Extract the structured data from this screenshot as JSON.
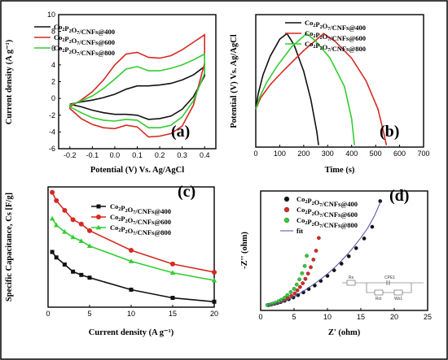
{
  "colors": {
    "c400": "#111111",
    "c600": "#d42a22",
    "c800": "#33cc33",
    "fit": "#4a4aa8"
  },
  "chart_data": [
    {
      "id": "a",
      "type": "line",
      "panel_label": "(a)",
      "xlabel": "Potential (V) Vs. Ag/AgCl",
      "ylabel": "Current density (A g⁻¹)",
      "xlim": [
        -0.25,
        0.45
      ],
      "ylim": [
        -6,
        10
      ],
      "xticks": [
        -0.2,
        -0.1,
        0.0,
        0.1,
        0.2,
        0.3,
        0.4
      ],
      "yticks": [
        -6,
        -4,
        -2,
        0,
        2,
        4,
        6,
        8,
        10
      ],
      "legend": [
        "Co₂P₂O₇/CNFs@400",
        "Co₂P₂O₇/CNFs@600",
        "Co₂P₂O₇/CNFs@800"
      ],
      "legend_position": "top-left",
      "series": [
        {
          "name": "Co₂P₂O₇/CNFs@400",
          "color_key": "c400",
          "x": [
            -0.2,
            -0.15,
            -0.1,
            -0.05,
            0,
            0.05,
            0.1,
            0.15,
            0.2,
            0.25,
            0.3,
            0.35,
            0.4,
            0.4,
            0.35,
            0.3,
            0.25,
            0.2,
            0.15,
            0.1,
            0.05,
            0,
            -0.05,
            -0.1,
            -0.15,
            -0.2
          ],
          "y": [
            -0.7,
            -0.4,
            -0.2,
            0.1,
            0.5,
            1.1,
            1.5,
            1.5,
            1.6,
            1.8,
            2.2,
            2.8,
            3.8,
            2.7,
            0.2,
            -1.3,
            -2.1,
            -2.4,
            -2.5,
            -2.0,
            -1.9,
            -1.9,
            -1.7,
            -1.4,
            -1.0,
            -0.7
          ]
        },
        {
          "name": "Co₂P₂O₇/CNFs@600",
          "color_key": "c600",
          "x": [
            -0.2,
            -0.15,
            -0.1,
            -0.05,
            0,
            0.05,
            0.1,
            0.15,
            0.2,
            0.25,
            0.3,
            0.35,
            0.4,
            0.4,
            0.35,
            0.3,
            0.25,
            0.2,
            0.15,
            0.1,
            0.05,
            0,
            -0.05,
            -0.1,
            -0.15,
            -0.2
          ],
          "y": [
            -1.0,
            -0.2,
            0.8,
            2.2,
            4.0,
            5.3,
            5.5,
            4.9,
            4.8,
            5.1,
            5.8,
            6.7,
            7.6,
            4.2,
            -0.8,
            -3.3,
            -4.2,
            -4.5,
            -4.6,
            -3.4,
            -3.2,
            -3.6,
            -3.5,
            -3.1,
            -2.4,
            -1.2
          ]
        },
        {
          "name": "Co₂P₂O₇/CNFs@800",
          "color_key": "c800",
          "x": [
            -0.2,
            -0.15,
            -0.1,
            -0.05,
            0,
            0.05,
            0.1,
            0.15,
            0.2,
            0.25,
            0.3,
            0.35,
            0.4,
            0.4,
            0.35,
            0.3,
            0.25,
            0.2,
            0.15,
            0.1,
            0.05,
            0,
            -0.05,
            -0.1,
            -0.15,
            -0.2
          ],
          "y": [
            -0.8,
            -0.3,
            0.3,
            1.2,
            2.3,
            3.5,
            3.8,
            3.3,
            3.3,
            3.6,
            4.0,
            4.6,
            5.3,
            3.0,
            -0.3,
            -2.2,
            -3.2,
            -3.5,
            -3.5,
            -2.6,
            -2.5,
            -2.7,
            -2.6,
            -2.3,
            -1.7,
            -1.0
          ]
        }
      ]
    },
    {
      "id": "b",
      "type": "line",
      "panel_label": "(b)",
      "xlabel": "Time (s)",
      "ylabel": "Potential (V) Vs. Ag/AgCl",
      "xlim": [
        0,
        700
      ],
      "ylim": [
        -0.2,
        0.5
      ],
      "xticks": [
        0,
        100,
        200,
        300,
        400,
        500,
        600,
        700
      ],
      "yticks": [],
      "legend": [
        "Co₂P₂O₇/CNFs@400",
        "Co₂P₂O₇/CNFs@600",
        "Co₂P₂O₇/CNFs@800"
      ],
      "legend_position": "top-right",
      "series": [
        {
          "name": "Co₂P₂O₇/CNFs@400",
          "color_key": "c400",
          "x": [
            0,
            10,
            30,
            60,
            100,
            130,
            160,
            200,
            230,
            255,
            262
          ],
          "y": [
            0.0,
            0.08,
            0.18,
            0.28,
            0.37,
            0.4,
            0.34,
            0.2,
            0.05,
            -0.12,
            -0.19
          ]
        },
        {
          "name": "Co₂P₂O₇/CNFs@600",
          "color_key": "c600",
          "x": [
            0,
            20,
            60,
            120,
            200,
            283,
            330,
            400,
            460,
            510,
            535,
            545
          ],
          "y": [
            0.0,
            0.06,
            0.13,
            0.21,
            0.31,
            0.4,
            0.36,
            0.27,
            0.15,
            0.0,
            -0.13,
            -0.19
          ]
        },
        {
          "name": "Co₂P₂O₇/CNFs@800",
          "color_key": "c800",
          "x": [
            0,
            15,
            45,
            90,
            150,
            212,
            250,
            310,
            370,
            400,
            412
          ],
          "y": [
            0.0,
            0.06,
            0.14,
            0.23,
            0.33,
            0.4,
            0.36,
            0.27,
            0.12,
            -0.05,
            -0.19
          ]
        }
      ]
    },
    {
      "id": "c",
      "type": "line",
      "panel_label": "(c)",
      "xlabel": "Current density (A g⁻¹)",
      "ylabel": "Specific Capacitance, Cs [F/g]",
      "xlim": [
        0,
        20
      ],
      "ylim": [
        0,
        220
      ],
      "xticks": [
        0,
        5,
        10,
        15,
        20
      ],
      "yticks": [],
      "legend": [
        "Co₂P₂O₇/CNFs@400",
        "Co₂P₂O₇/CNFs@600",
        "Co₂P₂O₇/CNFs@800"
      ],
      "legend_position": "top-right",
      "series": [
        {
          "name": "Co₂P₂O₇/CNFs@400",
          "color_key": "c400",
          "marker": "square",
          "x": [
            0.5,
            1,
            2,
            3,
            4,
            5,
            10,
            15,
            20
          ],
          "y": [
            101,
            91,
            78,
            65,
            59,
            54,
            32,
            17,
            10
          ]
        },
        {
          "name": "Co₂P₂O₇/CNFs@600",
          "color_key": "c600",
          "marker": "circle",
          "x": [
            0.5,
            1,
            2,
            3,
            4,
            5,
            10,
            15,
            20
          ],
          "y": [
            210,
            195,
            177,
            160,
            152,
            140,
            104,
            79,
            64
          ]
        },
        {
          "name": "Co₂P₂O₇/CNFs@800",
          "color_key": "c800",
          "marker": "triangle",
          "x": [
            0.5,
            1,
            2,
            3,
            4,
            5,
            10,
            15,
            20
          ],
          "y": [
            162,
            150,
            138,
            128,
            121,
            112,
            84,
            63,
            49
          ]
        }
      ]
    },
    {
      "id": "d",
      "type": "scatter",
      "panel_label": "(d)",
      "xlabel": "Z' (ohm)",
      "ylabel": "-Z'' (ohm)",
      "xlim": [
        0,
        25
      ],
      "ylim": [
        -2,
        45
      ],
      "xticks": [
        0,
        5,
        10,
        15,
        20,
        25
      ],
      "yticks": [],
      "legend": [
        "Co₂P₂O₇/CNFs@400",
        "Co₂P₂O₇/CNFs@600",
        "Co₂P₂O₇/CNFs@800",
        "fit"
      ],
      "legend_position": "top-left",
      "inset_labels": [
        "Rs",
        "CPE1",
        "Rct",
        "Wo1"
      ],
      "series": [
        {
          "name": "Co₂P₂O₇/CNFs@400",
          "color_key": "c400",
          "marker": "sphere",
          "x": [
            1.2,
            1.6,
            2.0,
            2.5,
            3.0,
            3.6,
            4.2,
            4.9,
            5.6,
            6.4,
            7.2,
            8.1,
            9.0,
            10.0,
            11.0,
            12.1,
            13.2,
            14.3,
            15.5,
            16.7,
            17.9
          ],
          "y": [
            0.1,
            0.3,
            0.6,
            0.9,
            1.3,
            1.8,
            2.4,
            3.1,
            4.0,
            5.1,
            6.4,
            7.8,
            9.6,
            11.6,
            13.8,
            16.4,
            19.3,
            22.5,
            26.3,
            30.9,
            41.0
          ]
        },
        {
          "name": "Co₂P₂O₇/CNFs@600",
          "color_key": "c600",
          "marker": "sphere",
          "x": [
            1.2,
            1.6,
            2.1,
            2.6,
            3.1,
            3.6,
            4.1,
            4.6,
            5.1,
            5.5,
            5.9,
            6.3,
            6.7,
            7.1,
            7.5,
            7.9,
            8.3,
            8.7
          ],
          "y": [
            0.1,
            0.3,
            0.6,
            1.0,
            1.5,
            2.1,
            2.8,
            3.7,
            4.7,
            5.9,
            7.2,
            8.7,
            10.4,
            12.5,
            15.0,
            18.0,
            21.5,
            26.5
          ]
        },
        {
          "name": "Co₂P₂O₇/CNFs@800",
          "color_key": "c800",
          "marker": "sphere",
          "x": [
            1.0,
            1.4,
            1.8,
            2.2,
            2.7,
            3.1,
            3.6,
            4.0,
            4.5,
            5.0,
            5.4,
            5.8,
            6.2,
            6.6,
            6.9
          ],
          "y": [
            0.1,
            0.3,
            0.6,
            1.0,
            1.6,
            2.2,
            3.0,
            4.0,
            5.2,
            6.5,
            8.2,
            10.2,
            12.6,
            15.5,
            19.5
          ]
        },
        {
          "name": "fit",
          "color_key": "fit",
          "marker": "none",
          "x": [
            1.0,
            2.0,
            3.0,
            4.0,
            5.0,
            6.0,
            7.0,
            8.0,
            9.0,
            10.0,
            11.0,
            12.0,
            13.0,
            14.0,
            15.0,
            16.0,
            17.0,
            18.0
          ],
          "y": [
            0.0,
            0.5,
            1.2,
            2.1,
            3.4,
            4.9,
            6.6,
            8.4,
            10.3,
            12.4,
            14.7,
            17.3,
            20.1,
            23.2,
            26.6,
            30.3,
            35.0,
            41.0
          ]
        }
      ]
    }
  ]
}
